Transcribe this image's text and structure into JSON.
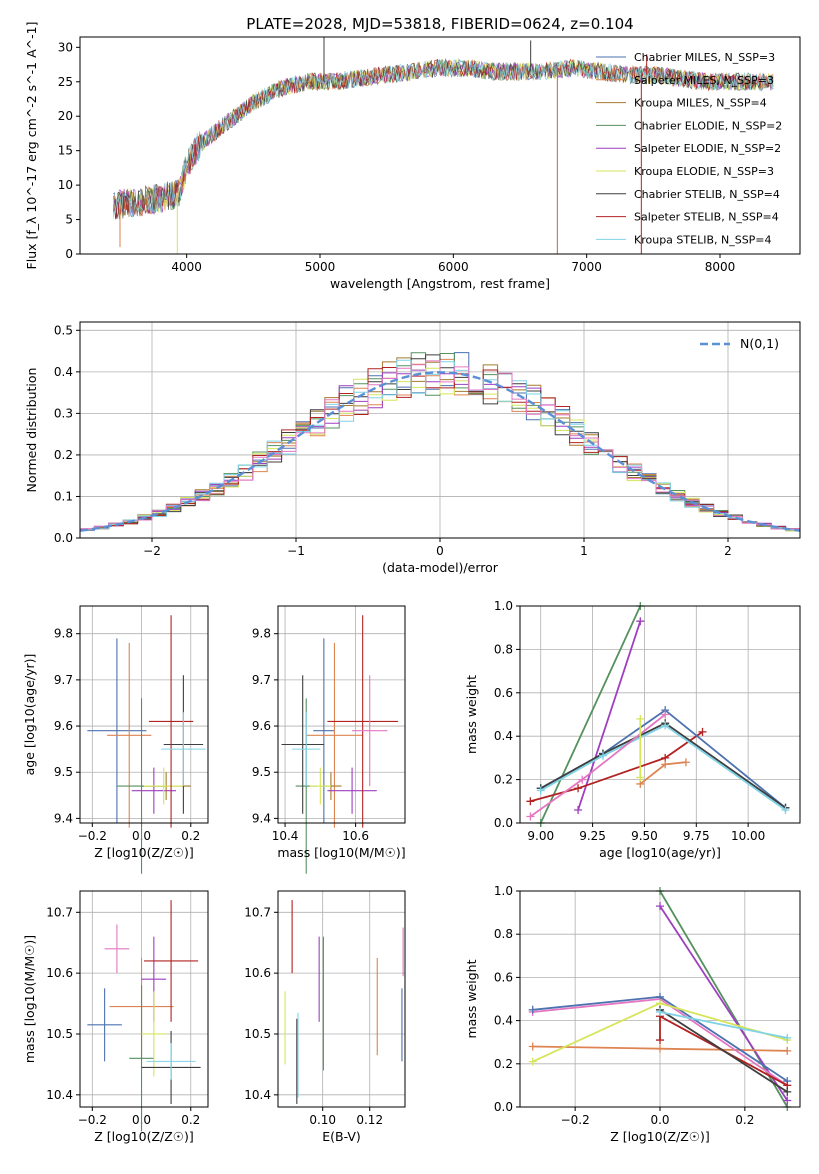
{
  "chart_data": [
    {
      "type": "line",
      "panel": "spectrum",
      "title": "PLATE=2028, MJD=53818, FIBERID=0624, z=0.104",
      "xlabel": "wavelength [Angstrom, rest frame]",
      "ylabel": "Flux [f_λ 10^-17 erg cm^-2 s^-1 A^-1]",
      "xlim": [
        3200,
        8600
      ],
      "ylim": [
        0,
        31.5
      ],
      "xticks": [
        4000,
        5000,
        6000,
        7000,
        8000
      ],
      "yticks": [
        0,
        5,
        10,
        15,
        20,
        25,
        30
      ],
      "grid": false,
      "legend_position": "top-right",
      "continuum": {
        "x": [
          3450,
          3600,
          3800,
          3950,
          4000,
          4100,
          4300,
          4500,
          4700,
          4900,
          5100,
          5300,
          5500,
          5700,
          5900,
          6100,
          6300,
          6500,
          6700,
          6900,
          7100,
          7300,
          7500,
          7700,
          7900,
          8100,
          8300,
          8400
        ],
        "y": [
          7,
          7.5,
          8,
          9,
          13,
          16,
          19,
          22,
          24,
          25,
          25,
          25.5,
          26,
          26.5,
          27,
          27,
          26.5,
          26.5,
          26.5,
          27,
          26.5,
          26,
          26,
          25.5,
          25,
          25,
          25,
          25
        ]
      },
      "series": [
        {
          "name": "Chabrier MILES, N_SSP=3",
          "color": "#4c72b0"
        },
        {
          "name": "Salpeter MILES, N_SSP=3",
          "color": "#dd8452"
        },
        {
          "name": "Kroupa MILES, N_SSP=4",
          "color": "#a47a2d"
        },
        {
          "name": "Chabrier ELODIE, N_SSP=2",
          "color": "#55915e"
        },
        {
          "name": "Salpeter ELODIE, N_SSP=2",
          "color": "#9e3fbf"
        },
        {
          "name": "Kroupa ELODIE, N_SSP=3",
          "color": "#d6e55a"
        },
        {
          "name": "Chabrier STELIB, N_SSP=4",
          "color": "#3f3f3f"
        },
        {
          "name": "Salpeter STELIB, N_SSP=4",
          "color": "#b22222"
        },
        {
          "name": "Kroupa STELIB, N_SSP=4",
          "color": "#7fd3e6"
        }
      ]
    },
    {
      "type": "bar",
      "panel": "residual-histogram",
      "xlabel": "(data-model)/error",
      "ylabel": "Normed distribution",
      "xlim": [
        -2.5,
        2.5
      ],
      "ylim": [
        0,
        0.52
      ],
      "xticks": [
        -2,
        -1,
        0,
        1,
        2
      ],
      "yticks": [
        0.0,
        0.1,
        0.2,
        0.3,
        0.4,
        0.5
      ],
      "grid": true,
      "legend_position": "top-right",
      "gaussian_legend": "N(0,1)",
      "gaussian_color": "#5b8fd6",
      "bin_width": 0.1,
      "bin_start": -2.5
    },
    {
      "type": "scatter",
      "panel": "age-vs-Z",
      "xlabel": "Z [log10(Z/Z☉)]",
      "ylabel": "age [log10(age/yr)]",
      "xlim": [
        -0.25,
        0.27
      ],
      "ylim": [
        9.39,
        9.86
      ],
      "xticks": [
        -0.2,
        0.0,
        0.2
      ],
      "yticks": [
        9.4,
        9.5,
        9.6,
        9.7,
        9.8
      ],
      "grid": true,
      "points": [
        {
          "x": -0.1,
          "y": 9.59,
          "xerr": 0.12,
          "yerr": 0.2,
          "color": "#4c72b0"
        },
        {
          "x": -0.05,
          "y": 9.58,
          "xerr": 0.09,
          "yerr": 0.2,
          "color": "#dd8452"
        },
        {
          "x": 0.1,
          "y": 9.47,
          "xerr": 0.1,
          "yerr": 0.03,
          "color": "#a47a2d"
        },
        {
          "x": 0.0,
          "y": 9.47,
          "xerr": 0.1,
          "yerr": 0.19,
          "color": "#55915e"
        },
        {
          "x": 0.05,
          "y": 9.46,
          "xerr": 0.09,
          "yerr": 0.05,
          "color": "#9e3fbf"
        },
        {
          "x": 0.09,
          "y": 9.47,
          "xerr": 0.08,
          "yerr": 0.04,
          "color": "#d6e55a"
        },
        {
          "x": 0.17,
          "y": 9.56,
          "xerr": 0.08,
          "yerr": 0.15,
          "color": "#3f3f3f"
        },
        {
          "x": 0.12,
          "y": 9.61,
          "xerr": 0.09,
          "yerr": 0.23,
          "color": "#b22222"
        },
        {
          "x": 0.17,
          "y": 9.55,
          "xerr": 0.09,
          "yerr": 0.08,
          "color": "#7fd3e6"
        }
      ]
    },
    {
      "type": "scatter",
      "panel": "age-vs-mass",
      "xlabel": "mass [log10(M/M☉)]",
      "ylabel": "",
      "xlim": [
        10.38,
        10.74
      ],
      "ylim": [
        9.39,
        9.86
      ],
      "xticks": [
        10.4,
        10.6
      ],
      "yticks": [
        9.4,
        9.5,
        9.6,
        9.7,
        9.8
      ],
      "grid": true,
      "points": [
        {
          "x": 10.51,
          "y": 9.59,
          "xerr": 0.03,
          "yerr": 0.2,
          "color": "#4c72b0"
        },
        {
          "x": 10.54,
          "y": 9.58,
          "xerr": 0.08,
          "yerr": 0.2,
          "color": "#dd8452"
        },
        {
          "x": 10.53,
          "y": 9.47,
          "xerr": 0.03,
          "yerr": 0.03,
          "color": "#a47a2d"
        },
        {
          "x": 10.46,
          "y": 9.47,
          "xerr": 0.03,
          "yerr": 0.19,
          "color": "#55915e"
        },
        {
          "x": 10.59,
          "y": 9.46,
          "xerr": 0.07,
          "yerr": 0.05,
          "color": "#9e3fbf"
        },
        {
          "x": 10.5,
          "y": 9.47,
          "xerr": 0.03,
          "yerr": 0.04,
          "color": "#d6e55a"
        },
        {
          "x": 10.45,
          "y": 9.56,
          "xerr": 0.06,
          "yerr": 0.15,
          "color": "#3f3f3f"
        },
        {
          "x": 10.62,
          "y": 9.61,
          "xerr": 0.1,
          "yerr": 0.23,
          "color": "#b22222"
        },
        {
          "x": 10.46,
          "y": 9.55,
          "xerr": 0.04,
          "yerr": 0.08,
          "color": "#7fd3e6"
        },
        {
          "x": 10.64,
          "y": 9.59,
          "xerr": 0.05,
          "yerr": 0.12,
          "color": "#e377c2"
        }
      ]
    },
    {
      "type": "line",
      "panel": "massweight-vs-age",
      "xlabel": "age [log10(age/yr)]",
      "ylabel": "mass weight",
      "xlim": [
        8.9,
        10.25
      ],
      "ylim": [
        0,
        1.0
      ],
      "xticks": [
        9.0,
        9.25,
        9.5,
        9.75,
        10.0
      ],
      "yticks": [
        0.0,
        0.2,
        0.4,
        0.6,
        0.8,
        1.0
      ],
      "grid": true,
      "series": [
        {
          "color": "#55915e",
          "x": [
            9.0,
            9.48
          ],
          "y": [
            0.0,
            1.0
          ]
        },
        {
          "color": "#9e3fbf",
          "x": [
            9.18,
            9.48
          ],
          "y": [
            0.06,
            0.93
          ]
        },
        {
          "color": "#b22222",
          "x": [
            8.95,
            9.18,
            9.6,
            9.78
          ],
          "y": [
            0.1,
            0.16,
            0.3,
            0.42
          ]
        },
        {
          "color": "#dd8452",
          "x": [
            9.48,
            9.6,
            9.7
          ],
          "y": [
            0.18,
            0.27,
            0.28
          ]
        },
        {
          "color": "#4c72b0",
          "x": [
            9.0,
            9.3,
            9.6,
            10.18
          ],
          "y": [
            0.16,
            0.32,
            0.52,
            0.07
          ]
        },
        {
          "color": "#3f3f3f",
          "x": [
            9.0,
            9.3,
            9.6,
            10.18
          ],
          "y": [
            0.16,
            0.32,
            0.46,
            0.07
          ]
        },
        {
          "color": "#7fd3e6",
          "x": [
            9.0,
            9.3,
            9.6,
            10.18
          ],
          "y": [
            0.15,
            0.31,
            0.45,
            0.06
          ]
        },
        {
          "color": "#e377c2",
          "x": [
            8.95,
            9.2,
            9.6
          ],
          "y": [
            0.03,
            0.2,
            0.5
          ]
        },
        {
          "color": "#d6e55a",
          "x": [
            9.48,
            9.48
          ],
          "y": [
            0.21,
            0.48
          ]
        }
      ]
    },
    {
      "type": "scatter",
      "panel": "mass-vs-Z",
      "xlabel": "Z [log10(Z/Z☉)]",
      "ylabel": "mass [log10(M/M☉)]",
      "xlim": [
        -0.25,
        0.27
      ],
      "ylim": [
        10.38,
        10.735
      ],
      "xticks": [
        -0.2,
        0.0,
        0.2
      ],
      "yticks": [
        10.4,
        10.5,
        10.6,
        10.7
      ],
      "grid": true,
      "points": [
        {
          "x": -0.15,
          "y": 10.515,
          "xerr": 0.07,
          "yerr": 0.06,
          "color": "#4c72b0"
        },
        {
          "x": 0.0,
          "y": 10.545,
          "xerr": 0.13,
          "yerr": 0.08,
          "color": "#dd8452"
        },
        {
          "x": -0.1,
          "y": 10.64,
          "xerr": 0.05,
          "yerr": 0.04,
          "color": "#e377c2"
        },
        {
          "x": 0.0,
          "y": 10.46,
          "xerr": 0.05,
          "yerr": 0.12,
          "color": "#55915e"
        },
        {
          "x": 0.05,
          "y": 10.59,
          "xerr": 0.05,
          "yerr": 0.07,
          "color": "#9e3fbf"
        },
        {
          "x": 0.05,
          "y": 10.5,
          "xerr": 0.05,
          "yerr": 0.07,
          "color": "#d6e55a"
        },
        {
          "x": 0.12,
          "y": 10.445,
          "xerr": 0.12,
          "yerr": 0.06,
          "color": "#3f3f3f"
        },
        {
          "x": 0.12,
          "y": 10.62,
          "xerr": 0.11,
          "yerr": 0.1,
          "color": "#b22222"
        },
        {
          "x": 0.12,
          "y": 10.455,
          "xerr": 0.1,
          "yerr": 0.03,
          "color": "#7fd3e6"
        }
      ]
    },
    {
      "type": "scatter",
      "panel": "mass-vs-EBV",
      "xlabel": "E(B-V)",
      "ylabel": "",
      "xlim": [
        0.081,
        0.135
      ],
      "ylim": [
        10.38,
        10.735
      ],
      "xticks": [
        0.1,
        0.12
      ],
      "yticks": [
        10.4,
        10.5,
        10.6,
        10.7
      ],
      "grid": true,
      "points": [
        {
          "x": 0.084,
          "y": 10.51,
          "yerr": 0.06,
          "color": "#d6e55a"
        },
        {
          "x": 0.087,
          "y": 10.66,
          "yerr": 0.06,
          "color": "#b22222"
        },
        {
          "x": 0.089,
          "y": 10.455,
          "yerr": 0.07,
          "color": "#3f3f3f"
        },
        {
          "x": 0.0895,
          "y": 10.465,
          "yerr": 0.07,
          "color": "#7fd3e6"
        },
        {
          "x": 0.0985,
          "y": 10.59,
          "yerr": 0.07,
          "color": "#9e3fbf"
        },
        {
          "x": 0.1003,
          "y": 10.55,
          "yerr": 0.11,
          "color": "#55915e"
        },
        {
          "x": 0.1232,
          "y": 10.545,
          "yerr": 0.08,
          "color": "#dd8452"
        },
        {
          "x": 0.1337,
          "y": 10.515,
          "yerr": 0.06,
          "color": "#4c72b0"
        },
        {
          "x": 0.1342,
          "y": 10.635,
          "yerr": 0.04,
          "color": "#e377c2"
        }
      ]
    },
    {
      "type": "line",
      "panel": "massweight-vs-Z",
      "xlabel": "Z [log10(Z/Z☉)]",
      "ylabel": "mass weight",
      "xlim": [
        -0.33,
        0.33
      ],
      "ylim": [
        0,
        1.0
      ],
      "xticks": [
        -0.2,
        0.0,
        0.2
      ],
      "yticks": [
        0.0,
        0.2,
        0.4,
        0.6,
        0.8,
        1.0
      ],
      "grid": true,
      "series": [
        {
          "color": "#55915e",
          "x": [
            0.0,
            0.3
          ],
          "y": [
            1.0,
            0.0
          ]
        },
        {
          "color": "#9e3fbf",
          "x": [
            0.0,
            0.3
          ],
          "y": [
            0.93,
            0.03
          ]
        },
        {
          "color": "#dd8452",
          "x": [
            -0.3,
            0.0,
            0.3
          ],
          "y": [
            0.28,
            0.27,
            0.26
          ]
        },
        {
          "color": "#e377c2",
          "x": [
            -0.3,
            0.0,
            0.3
          ],
          "y": [
            0.44,
            0.5,
            0.1
          ]
        },
        {
          "color": "#4c72b0",
          "x": [
            -0.3,
            0.0,
            0.3
          ],
          "y": [
            0.45,
            0.51,
            0.12
          ]
        },
        {
          "color": "#d6e55a",
          "x": [
            -0.3,
            0.0,
            0.3
          ],
          "y": [
            0.21,
            0.48,
            0.31
          ]
        },
        {
          "color": "#b22222",
          "x": [
            0.0,
            0.0,
            0.3
          ],
          "y": [
            0.31,
            0.42,
            0.1
          ]
        },
        {
          "color": "#3f3f3f",
          "x": [
            0.0,
            0.3
          ],
          "y": [
            0.45,
            0.07
          ]
        },
        {
          "color": "#7fd3e6",
          "x": [
            0.0,
            0.3
          ],
          "y": [
            0.44,
            0.32
          ]
        }
      ]
    }
  ]
}
